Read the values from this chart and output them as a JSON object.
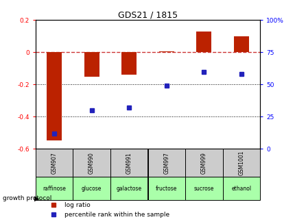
{
  "title": "GDS21 / 1815",
  "samples": [
    "GSM907",
    "GSM990",
    "GSM991",
    "GSM997",
    "GSM999",
    "GSM1001"
  ],
  "log_ratios": [
    -0.55,
    -0.15,
    -0.14,
    0.005,
    0.13,
    0.1
  ],
  "percentiles": [
    12,
    30,
    32,
    49,
    60,
    58
  ],
  "protocols": [
    "raffinose",
    "glucose",
    "galactose",
    "fructose",
    "sucrose",
    "ethanol"
  ],
  "ylim_left": [
    -0.6,
    0.2
  ],
  "ylim_right": [
    0,
    100
  ],
  "bar_color": "#bb2200",
  "dot_color": "#2222bb",
  "dashed_color": "#cc3333",
  "grid_color": "#000000",
  "protocol_bg": "#aaffaa",
  "sample_bg": "#cccccc",
  "legend_bar_color": "#bb2200",
  "legend_dot_color": "#2222bb",
  "bar_width": 0.4
}
